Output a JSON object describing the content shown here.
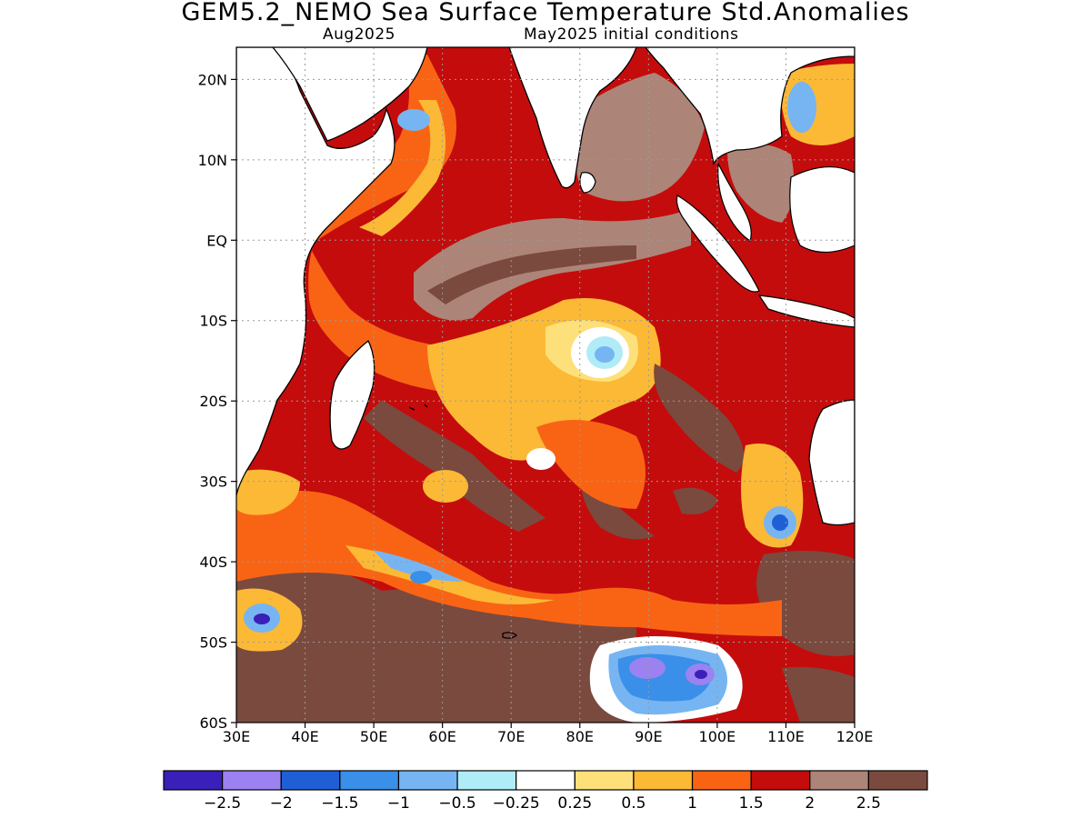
{
  "title": "GEM5.2_NEMO Sea Surface Temperature Std.Anomalies",
  "subtitle_left": "Aug2025",
  "subtitle_right": "May2025 initial conditions",
  "map": {
    "region": "Indian Ocean",
    "lon_range": [
      30,
      120
    ],
    "lat_range": [
      -60,
      24
    ],
    "lat_ticks": [
      {
        "value": 20,
        "label": "20N"
      },
      {
        "value": 10,
        "label": "10N"
      },
      {
        "value": 0,
        "label": "EQ"
      },
      {
        "value": -10,
        "label": "10S"
      },
      {
        "value": -20,
        "label": "20S"
      },
      {
        "value": -30,
        "label": "30S"
      },
      {
        "value": -40,
        "label": "40S"
      },
      {
        "value": -50,
        "label": "50S"
      },
      {
        "value": -60,
        "label": "60S"
      }
    ],
    "lon_ticks": [
      {
        "value": 30,
        "label": "30E"
      },
      {
        "value": 40,
        "label": "40E"
      },
      {
        "value": 50,
        "label": "50E"
      },
      {
        "value": 60,
        "label": "60E"
      },
      {
        "value": 70,
        "label": "70E"
      },
      {
        "value": 80,
        "label": "80E"
      },
      {
        "value": 90,
        "label": "90E"
      },
      {
        "value": 100,
        "label": "100E"
      },
      {
        "value": 110,
        "label": "110E"
      },
      {
        "value": 120,
        "label": "120E"
      }
    ],
    "gridlines": "dotted"
  },
  "colorbar": {
    "colors": [
      "#3a1fb8",
      "#9b82f0",
      "#1f5fd6",
      "#3a8fe8",
      "#76b5f2",
      "#b0ecf7",
      "#ffffff",
      "#fde07a",
      "#fbb936",
      "#f96414",
      "#c40c0c",
      "#ad8478",
      "#7a4a3f"
    ],
    "labels": [
      "-2.5",
      "-2",
      "-1.5",
      "-1",
      "-0.5",
      "-0.25",
      "0.25",
      "0.5",
      "1",
      "1.5",
      "2",
      "2.5"
    ]
  }
}
